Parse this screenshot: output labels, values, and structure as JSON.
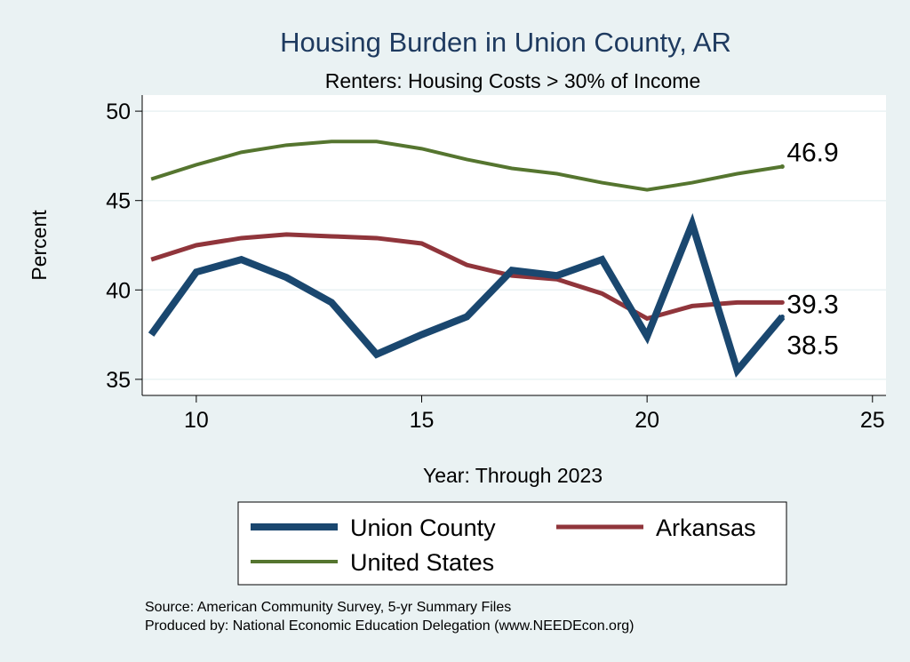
{
  "chart_data": {
    "type": "line",
    "title": "Housing Burden in Union County, AR",
    "subtitle": "Renters: Housing Costs > 30% of Income",
    "xlabel": "Year: Through 2023",
    "ylabel": "Percent",
    "xlim": [
      8.8,
      25.3
    ],
    "ylim": [
      34.1,
      50.9
    ],
    "xticks": [
      10,
      15,
      20,
      25
    ],
    "yticks": [
      35,
      40,
      45,
      50
    ],
    "grid": true,
    "legend_position": "bottom",
    "x": [
      9,
      10,
      11,
      12,
      13,
      14,
      15,
      16,
      17,
      18,
      19,
      20,
      21,
      22,
      23
    ],
    "series": [
      {
        "name": "Union County",
        "color": "#1a476f",
        "width": 8,
        "values": [
          37.5,
          41.0,
          41.7,
          40.7,
          39.3,
          36.4,
          37.5,
          38.5,
          41.1,
          40.8,
          41.7,
          37.4,
          43.7,
          35.5,
          38.5
        ],
        "end_label": "38.5"
      },
      {
        "name": "Arkansas",
        "color": "#90353b",
        "width": 5,
        "values": [
          41.7,
          42.5,
          42.9,
          43.1,
          43.0,
          42.9,
          42.6,
          41.4,
          40.8,
          40.6,
          39.8,
          38.4,
          39.1,
          39.3,
          39.3
        ],
        "end_label": "39.3"
      },
      {
        "name": "United States",
        "color": "#55752f",
        "width": 4,
        "values": [
          46.2,
          47.0,
          47.7,
          48.1,
          48.3,
          48.3,
          47.9,
          47.3,
          46.8,
          46.5,
          46.0,
          45.6,
          46.0,
          46.5,
          46.9
        ],
        "end_label": "46.9"
      }
    ],
    "notes": [
      "Source: American Community Survey, 5-yr Summary Files",
      "Produced by: National Economic Education Delegation (www.NEEDEcon.org)"
    ]
  }
}
